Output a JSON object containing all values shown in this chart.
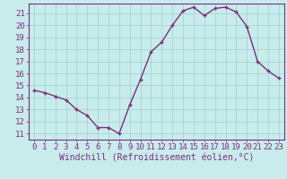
{
  "x": [
    0,
    1,
    2,
    3,
    4,
    5,
    6,
    7,
    8,
    9,
    10,
    11,
    12,
    13,
    14,
    15,
    16,
    17,
    18,
    19,
    20,
    21,
    22,
    23
  ],
  "y": [
    14.6,
    14.4,
    14.1,
    13.8,
    13.0,
    12.5,
    11.5,
    11.5,
    11.0,
    13.4,
    15.5,
    17.8,
    18.6,
    20.0,
    21.2,
    21.5,
    20.8,
    21.4,
    21.5,
    21.1,
    19.9,
    17.0,
    16.2,
    15.6
  ],
  "line_color": "#7b2f7b",
  "marker": "+",
  "bg_color": "#c8ecec",
  "grid_color": "#a0d0d0",
  "xlabel": "Windchill (Refroidissement éolien,°C)",
  "xlim": [
    -0.5,
    23.5
  ],
  "ylim": [
    10.5,
    21.8
  ],
  "yticks": [
    11,
    12,
    13,
    14,
    15,
    16,
    17,
    18,
    19,
    20,
    21
  ],
  "xticks": [
    0,
    1,
    2,
    3,
    4,
    5,
    6,
    7,
    8,
    9,
    10,
    11,
    12,
    13,
    14,
    15,
    16,
    17,
    18,
    19,
    20,
    21,
    22,
    23
  ],
  "tick_color": "#7b2f7b",
  "label_color": "#7b2f7b",
  "spine_color": "#7b2f7b",
  "line_width": 1.0,
  "marker_size": 3.5,
  "tick_fontsize": 6.5,
  "xlabel_fontsize": 7.0
}
